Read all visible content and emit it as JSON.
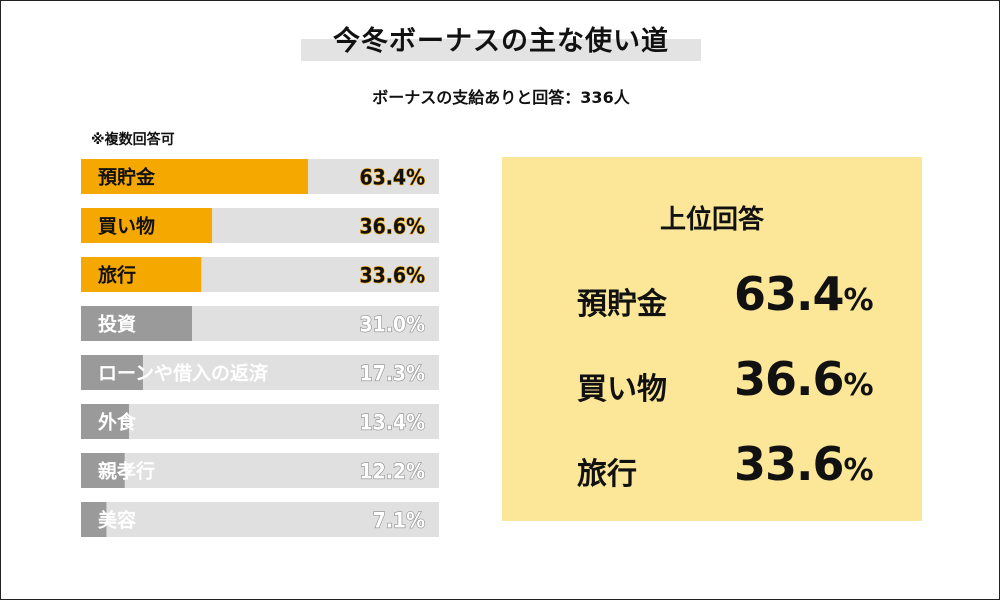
{
  "title": "今冬ボーナスの主な使い道",
  "subtitle": "ボーナスの支給ありと回答：336人",
  "note": "※複数回答可",
  "chart_data": {
    "type": "bar",
    "orientation": "horizontal",
    "xlim": [
      0,
      100
    ],
    "categories": [
      "預貯金",
      "買い物",
      "旅行",
      "投資",
      "ローンや借入の返済",
      "外食",
      "親孝行",
      "美容"
    ],
    "values": [
      63.4,
      36.6,
      33.6,
      31.0,
      17.3,
      13.4,
      12.2,
      7.1
    ],
    "value_labels": [
      "63.4%",
      "36.6%",
      "33.6%",
      "31.0%",
      "17.3%",
      "13.4%",
      "12.2%",
      "7.1%"
    ],
    "highlight_count": 3,
    "colors": {
      "highlight": "#f5a800",
      "normal": "#9a9a9a",
      "track": "#e0e0e0"
    }
  },
  "top_answers": {
    "title": "上位回答",
    "items": [
      {
        "label": "預貯金",
        "value": "63.4",
        "unit": "%"
      },
      {
        "label": "買い物",
        "value": "36.6",
        "unit": "%"
      },
      {
        "label": "旅行",
        "value": "33.6",
        "unit": "%"
      }
    ],
    "background": "#fbe797"
  }
}
